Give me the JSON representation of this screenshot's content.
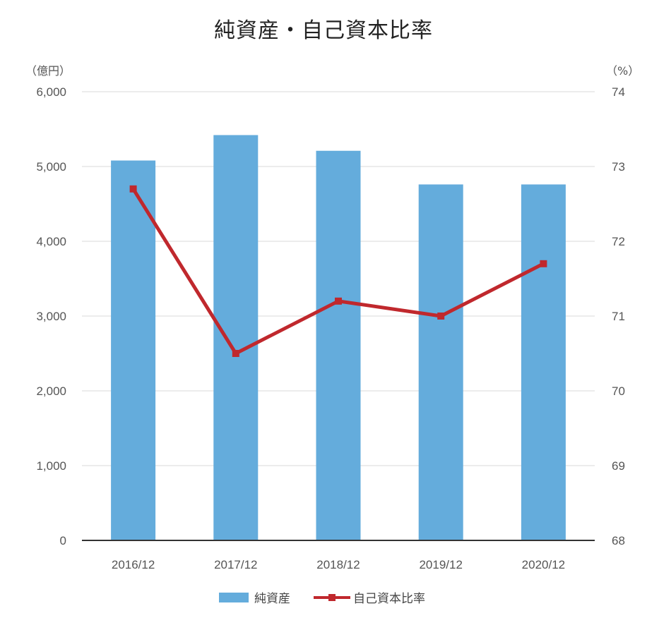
{
  "chart_data": {
    "type": "bar",
    "title": "純資産・自己資本比率",
    "categories": [
      "2016/12",
      "2017/12",
      "2018/12",
      "2019/12",
      "2020/12"
    ],
    "y_left": {
      "unit": "（億円）",
      "range": [
        0,
        6000
      ],
      "ticks": [
        0,
        1000,
        2000,
        3000,
        4000,
        5000,
        6000
      ],
      "tick_labels": [
        "0",
        "1,000",
        "2,000",
        "3,000",
        "4,000",
        "5,000",
        "6,000"
      ]
    },
    "y_right": {
      "unit": "（%）",
      "range": [
        68,
        74
      ],
      "ticks": [
        68,
        69,
        70,
        71,
        72,
        73,
        74
      ],
      "tick_labels": [
        "68",
        "69",
        "70",
        "71",
        "72",
        "73",
        "74"
      ]
    },
    "series": [
      {
        "name": "純資産",
        "type": "bar",
        "axis": "left",
        "color": "#64acdc",
        "values": [
          5080,
          5420,
          5210,
          4760,
          4760
        ]
      },
      {
        "name": "自己資本比率",
        "type": "line",
        "axis": "right",
        "color": "#c0282d",
        "values": [
          72.7,
          70.5,
          71.2,
          71.0,
          71.7
        ]
      }
    ],
    "grid": true,
    "legend": "bottom"
  }
}
